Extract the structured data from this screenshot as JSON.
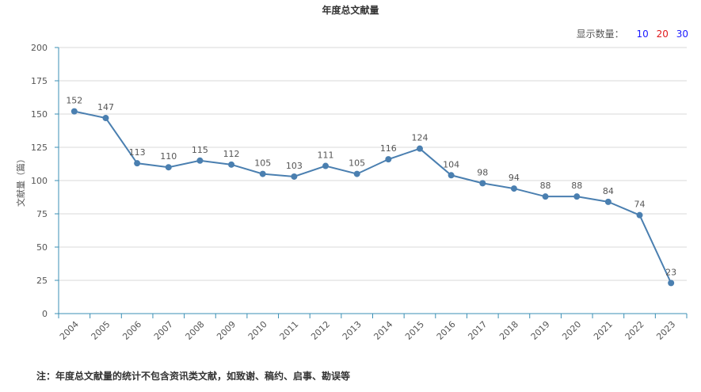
{
  "header": {
    "title": "年度总文献量"
  },
  "display_count": {
    "label": "显示数量：",
    "options": [
      "10",
      "20",
      "30"
    ]
  },
  "footnote": "注：年度总文献量的统计不包含资讯类文献，如致谢、稿约、启事、勘误等",
  "colors": {
    "line": "#4a7fb0",
    "axis": "#3b8fb4",
    "grid": "#d9d9d9"
  },
  "chart_data": {
    "type": "line",
    "title": "年度总文献量",
    "ylabel": "文献量（篇）",
    "xlabel": "",
    "ylim": [
      0,
      200
    ],
    "yticks": [
      0,
      25,
      50,
      75,
      100,
      125,
      150,
      175,
      200
    ],
    "categories": [
      "2004",
      "2005",
      "2006",
      "2007",
      "2008",
      "2009",
      "2010",
      "2011",
      "2012",
      "2013",
      "2014",
      "2015",
      "2016",
      "2017",
      "2018",
      "2019",
      "2020",
      "2021",
      "2022",
      "2023"
    ],
    "values": [
      152,
      147,
      113,
      110,
      115,
      112,
      105,
      103,
      111,
      105,
      116,
      124,
      104,
      98,
      94,
      88,
      88,
      84,
      74,
      23
    ],
    "grid": true
  }
}
